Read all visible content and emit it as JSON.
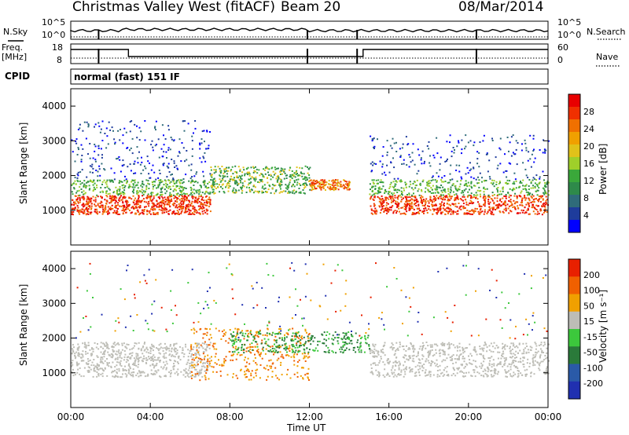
{
  "header": {
    "station": "Christmas Valley West (fitACF)",
    "beam": "Beam 20",
    "date": "08/Mar/2014"
  },
  "strip": {
    "nsky_label": "N.Sky",
    "nsearch_label": "N.Search",
    "noise_ticks_left": [
      "10^5",
      "10^0"
    ],
    "noise_ticks_right": [
      "10^5",
      "10^0"
    ],
    "freq_label_1": "Freq.",
    "freq_label_2": "[MHz]",
    "freq_ticks": [
      "18",
      "8"
    ],
    "nave_label": "Nave",
    "nave_ticks": [
      "60",
      "0"
    ],
    "cpid_label": "CPID",
    "cpid_text": "normal (fast) 151 IF"
  },
  "chart_data": [
    {
      "type": "heatmap",
      "name": "power",
      "ylabel": "Slant Range [km]",
      "yticks": [
        1000,
        2000,
        3000,
        4000
      ],
      "ylim": [
        0,
        4500
      ],
      "xlim_hours": [
        0,
        24
      ],
      "colorbar_label": "Power [dB]",
      "colorbar_ticks": [
        "28",
        "24",
        "20",
        "16",
        "12",
        "8",
        "4"
      ],
      "colors": [
        "#0000ff",
        "#1e3c9c",
        "#2f6b7a",
        "#2e8a4a",
        "#3aa83a",
        "#9fcf2a",
        "#e0c21a",
        "#f0a000",
        "#f07000",
        "#f03000",
        "#e80000"
      ]
    },
    {
      "type": "heatmap",
      "name": "velocity",
      "ylabel": "Slant Range [km]",
      "yticks": [
        1000,
        2000,
        3000,
        4000
      ],
      "ylim": [
        0,
        4500
      ],
      "xlim_hours": [
        0,
        24
      ],
      "colorbar_label": "Velocity [m s⁻¹]",
      "colorbar_ticks": [
        "200",
        "100",
        "50",
        "15",
        "-15",
        "-50",
        "-100",
        "-200"
      ],
      "colors": [
        "#2030b0",
        "#2a5aa8",
        "#2a7a3a",
        "#3cc83c",
        "#bdbdb6",
        "#f0a000",
        "#f06000",
        "#e82000"
      ]
    }
  ],
  "xaxis": {
    "ticks": [
      "00:00",
      "04:00",
      "08:00",
      "12:00",
      "16:00",
      "20:00",
      "00:00"
    ],
    "label": "Time UT"
  }
}
